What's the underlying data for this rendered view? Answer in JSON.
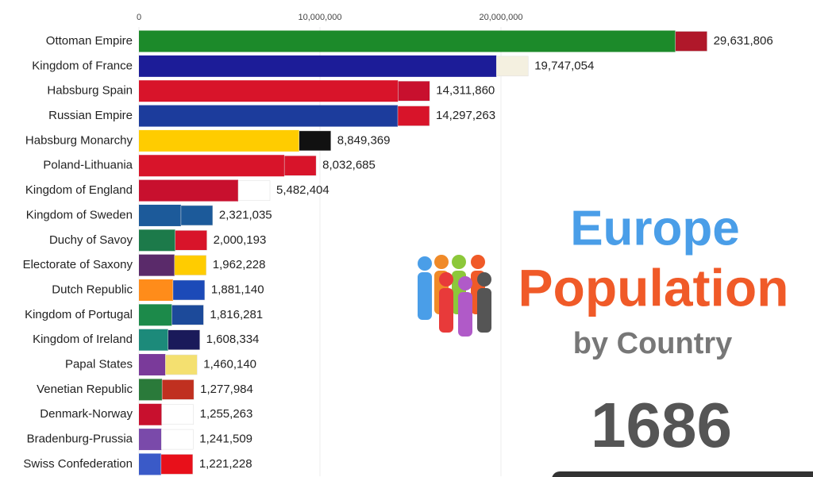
{
  "chart_data": {
    "type": "bar",
    "orientation": "horizontal",
    "title": "Europe",
    "subtitle": "Population",
    "caption": "by Country",
    "year": "1686",
    "categories": [
      "Ottoman Empire",
      "Kingdom of France",
      "Habsburg Spain",
      "Russian Empire",
      "Habsburg Monarchy",
      "Poland-Lithuania",
      "Kingdom of England",
      "Kingdom of Sweden",
      "Duchy of Savoy",
      "Electorate of Saxony",
      "Dutch Republic",
      "Kingdom of Portugal",
      "Kingdom of Ireland",
      "Papal States",
      "Venetian Republic",
      "Denmark-Norway",
      "Bradenburg-Prussia",
      "Swiss Confederation"
    ],
    "values": [
      29631806,
      19747054,
      14311860,
      14297263,
      8849369,
      8032685,
      5482404,
      2321035,
      2000193,
      1962228,
      1881140,
      1816281,
      1608334,
      1460140,
      1277984,
      1255263,
      1241509,
      1221228
    ],
    "value_labels": [
      "29,631,806",
      "19,747,054",
      "14,311,860",
      "14,297,263",
      "8,849,369",
      "8,032,685",
      "5,482,404",
      "2,321,035",
      "2,000,193",
      "1,962,228",
      "1,881,140",
      "1,816,281",
      "1,608,334",
      "1,460,140",
      "1,277,984",
      "1,255,263",
      "1,241,509",
      "1,221,228"
    ],
    "colors": [
      "#1c8a2a",
      "#1c1c98",
      "#d8142a",
      "#1c3c9c",
      "#ffcc00",
      "#d8142a",
      "#c8102e",
      "#1c5a9a",
      "#1c7a4a",
      "#5a2a6a",
      "#ff8c1a",
      "#1c8a4a",
      "#1c8a7a",
      "#7a3a9a",
      "#2a7a3a",
      "#c8102e",
      "#7a4aaa",
      "#3a5ac8"
    ],
    "flag_colors": [
      "#b0182a",
      "#f4f0e0",
      "#c8102e",
      "#d8142a",
      "#111111",
      "#d8142a",
      "#ffffff",
      "#1c5a9a",
      "#d8142a",
      "#ffcc00",
      "#1c4ab8",
      "#1c4a9a",
      "#1a1a5a",
      "#f4e070",
      "#c03020",
      "#ffffff",
      "#ffffff",
      "#e8101a"
    ],
    "xlim": [
      0,
      35000000
    ],
    "xticks": [
      0,
      {
        "value": 10000000,
        "label": "10,000,000"
      },
      {
        "value": 20000000,
        "label": "20,000,000"
      }
    ],
    "grid": true
  }
}
